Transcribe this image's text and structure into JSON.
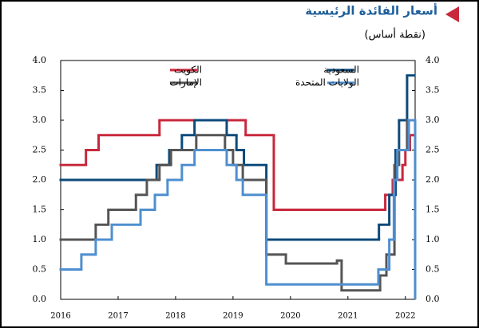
{
  "chart_data": {
    "type": "step-line",
    "title": "أسعار الفائدة الرئيسية",
    "subtitle": "(نقطة أساس)",
    "xlim": [
      2016,
      2022.17
    ],
    "xticks": [
      2016,
      2017,
      2018,
      2019,
      2020,
      2021,
      2022
    ],
    "ylim": [
      0,
      4
    ],
    "yticks": [
      {
        "value": 0,
        "label": "0.0"
      },
      {
        "value": 0.5,
        "label": "0.5"
      },
      {
        "value": 1,
        "label": "1.0"
      },
      {
        "value": 1.5,
        "label": "1.5"
      },
      {
        "value": 2,
        "label": "2.0"
      },
      {
        "value": 2.5,
        "label": "2.5"
      },
      {
        "value": 3,
        "label": "3.0"
      },
      {
        "value": 3.5,
        "label": "3.5"
      },
      {
        "value": 4,
        "label": "4.0"
      }
    ],
    "y2lim": [
      0,
      4
    ],
    "y2ticks": [
      {
        "value": 0,
        "label": "0.0"
      },
      {
        "value": 0.5,
        "label": "0.5"
      },
      {
        "value": 1,
        "label": "1.0"
      },
      {
        "value": 1.5,
        "label": "1.5"
      },
      {
        "value": 2,
        "label": "2.0"
      },
      {
        "value": 2.5,
        "label": "2.5"
      },
      {
        "value": 3,
        "label": "3.0"
      },
      {
        "value": 3.5,
        "label": "3.5"
      },
      {
        "value": 4,
        "label": "4.0"
      }
    ],
    "series": [
      {
        "name": "الكويت",
        "color": "#c8283c",
        "x": [
          2016,
          2016.44,
          2016.66,
          2017.72,
          2019.22,
          2019.71,
          2021.65,
          2021.78,
          2021.95,
          2022.0,
          2022.08,
          2022.14,
          2022.17
        ],
        "values": [
          2.25,
          2.5,
          2.75,
          3.0,
          2.75,
          1.5,
          1.75,
          2.0,
          2.25,
          2.5,
          2.75,
          2.75,
          2.75
        ]
      },
      {
        "name": "السعودية",
        "color": "#0d4a7a",
        "x": [
          2016,
          2017.67,
          2017.89,
          2018.11,
          2018.33,
          2018.89,
          2019.06,
          2019.19,
          2019.58,
          2021.54,
          2021.72,
          2021.83,
          2021.89,
          2022.03,
          2022.15
        ],
        "values": [
          2.0,
          2.25,
          2.5,
          2.75,
          3.0,
          2.75,
          2.5,
          2.25,
          1.0,
          1.25,
          1.75,
          2.5,
          3.0,
          3.75,
          3.75
        ]
      },
      {
        "name": "الإمارات",
        "color": "#555555",
        "x": [
          2016,
          2016.61,
          2016.83,
          2017.31,
          2017.5,
          2017.72,
          2017.92,
          2018.14,
          2018.36,
          2018.86,
          2019.0,
          2019.17,
          2019.58,
          2019.92,
          2020.81,
          2020.89,
          2021.56,
          2021.67,
          2021.81,
          2021.89,
          2022.03,
          2022.15
        ],
        "values": [
          1.0,
          1.25,
          1.5,
          1.75,
          2.0,
          2.25,
          2.5,
          2.5,
          2.75,
          2.5,
          2.25,
          2.0,
          0.75,
          0.6,
          0.65,
          0.15,
          0.4,
          0.75,
          2.25,
          2.5,
          3.0,
          3.0
        ]
      },
      {
        "name": "الولايات المتحدة",
        "color": "#4f8fcf",
        "x": [
          2016,
          2016.36,
          2016.61,
          2016.89,
          2017.39,
          2017.64,
          2017.86,
          2018.11,
          2018.33,
          2018.89,
          2019.06,
          2019.17,
          2019.58,
          2021.53,
          2021.72,
          2021.8,
          2021.86,
          2022.06,
          2022.17
        ],
        "values": [
          0.5,
          0.75,
          1.0,
          1.25,
          1.5,
          1.75,
          2.0,
          2.25,
          2.5,
          2.25,
          2.0,
          1.75,
          0.25,
          0.5,
          1.0,
          2.0,
          2.5,
          3.0,
          0
        ]
      }
    ]
  }
}
